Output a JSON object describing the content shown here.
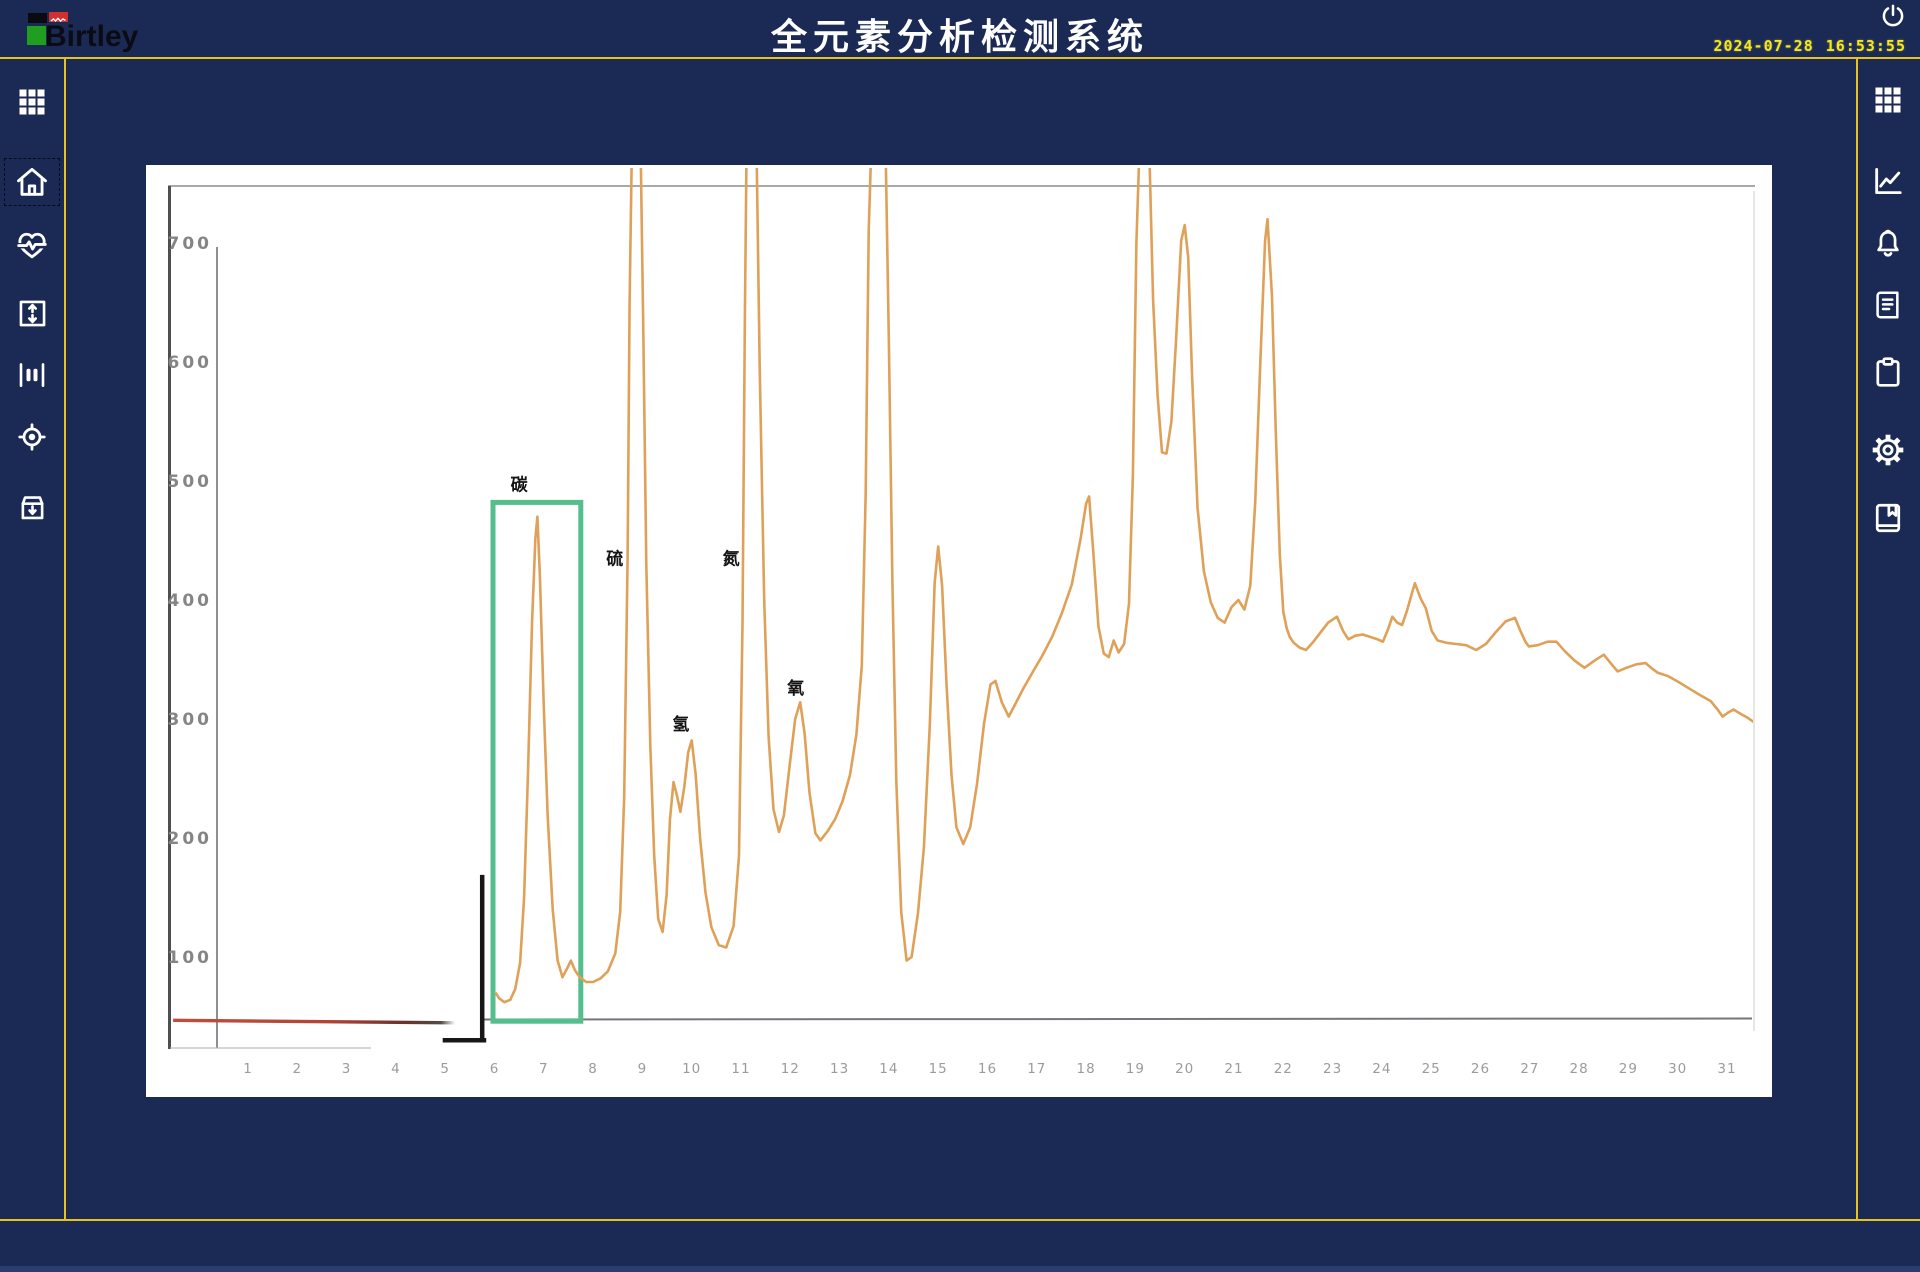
{
  "header": {
    "title": "全元素分析检测系统",
    "brand": "Birtley",
    "date": "2024-07-28",
    "time": "16:53:55",
    "datetime_color": "#f6e81a"
  },
  "colors": {
    "background": "#1b2a55",
    "accent_yellow": "#e8c21e",
    "panel_white": "#ffffff",
    "curve_orange": "#dfa058",
    "highlight_green": "#54bf8c",
    "baseline_red": "#bf4a3a"
  },
  "left_sidebar": {
    "items": [
      {
        "id": "apps",
        "icon": "grid-icon",
        "selected": false
      },
      {
        "id": "home",
        "icon": "home-icon",
        "selected": true
      },
      {
        "id": "monitor",
        "icon": "heartbeat-icon",
        "selected": false
      },
      {
        "id": "range",
        "icon": "vertical-range-icon",
        "selected": false
      },
      {
        "id": "columns",
        "icon": "gap-bars-icon",
        "selected": false
      },
      {
        "id": "locate",
        "icon": "target-icon",
        "selected": false
      },
      {
        "id": "archive",
        "icon": "archive-box-icon",
        "selected": false
      }
    ]
  },
  "right_sidebar": {
    "items": [
      {
        "id": "apps",
        "icon": "grid-icon",
        "selected": false
      },
      {
        "id": "trend",
        "icon": "line-chart-icon",
        "selected": false
      },
      {
        "id": "alarms",
        "icon": "bell-icon",
        "selected": false
      },
      {
        "id": "report",
        "icon": "document-icon",
        "selected": false
      },
      {
        "id": "tasks",
        "icon": "clipboard-icon",
        "selected": false
      },
      {
        "id": "settings",
        "icon": "gear-icon",
        "selected": false
      },
      {
        "id": "records",
        "icon": "book-icon",
        "selected": false
      }
    ]
  },
  "chart_data": {
    "type": "line",
    "title": "",
    "xlabel": "",
    "ylabel": "",
    "grid": false,
    "legend": null,
    "xlim": [
      -0.6,
      31.7
    ],
    "ylim": [
      0,
      765
    ],
    "x_ticks": [
      1,
      2,
      3,
      4,
      5,
      6,
      7,
      8,
      9,
      10,
      11,
      12,
      13,
      14,
      15,
      16,
      17,
      18,
      19,
      20,
      21,
      22,
      23,
      24,
      25,
      26,
      27,
      28,
      29,
      30,
      31
    ],
    "y_ticks": [
      100,
      200,
      300,
      400,
      500,
      600,
      700
    ],
    "annotations": [
      {
        "text": "碳",
        "t": 6.5,
        "v": 497
      },
      {
        "text": "硫",
        "t": 8.44,
        "v": 435
      },
      {
        "text": "氢",
        "t": 9.78,
        "v": 296
      },
      {
        "text": "氮",
        "t": 10.8,
        "v": 435
      },
      {
        "text": "氧",
        "t": 12.11,
        "v": 326
      }
    ],
    "highlight_box": {
      "element": "碳",
      "t1": 5.97,
      "t2": 7.75,
      "v1": 46,
      "v2": 482,
      "color": "#54bf8c"
    },
    "bracket": {
      "t": 5.75,
      "v_top": 169,
      "v_bottom": 30,
      "t_left": 4.95,
      "color": "#171717"
    },
    "red_baseline": {
      "v": 46,
      "t_start": -0.52,
      "t_end": 5.2,
      "color": "#bf4a3a"
    },
    "baseline": {
      "v": 47.5,
      "t_start": 5.73,
      "t_end": 31.55,
      "color": "#5a5e66"
    },
    "series": [
      {
        "name": "element-spectrum",
        "color": "#dfa058",
        "points": [
          [
            6.02,
            70
          ],
          [
            6.1,
            65
          ],
          [
            6.2,
            62
          ],
          [
            6.32,
            64
          ],
          [
            6.42,
            73
          ],
          [
            6.52,
            95
          ],
          [
            6.6,
            150
          ],
          [
            6.68,
            255
          ],
          [
            6.76,
            380
          ],
          [
            6.83,
            452
          ],
          [
            6.87,
            470
          ],
          [
            6.92,
            420
          ],
          [
            7.0,
            310
          ],
          [
            7.08,
            218
          ],
          [
            7.18,
            140
          ],
          [
            7.28,
            97
          ],
          [
            7.38,
            83
          ],
          [
            7.48,
            91
          ],
          [
            7.55,
            97
          ],
          [
            7.63,
            89
          ],
          [
            7.73,
            83
          ],
          [
            7.86,
            79
          ],
          [
            8.0,
            79
          ],
          [
            8.15,
            82
          ],
          [
            8.3,
            88
          ],
          [
            8.45,
            103
          ],
          [
            8.55,
            138
          ],
          [
            8.63,
            235
          ],
          [
            8.7,
            435
          ],
          [
            8.74,
            650
          ],
          [
            8.78,
            765
          ],
          [
            8.97,
            765
          ],
          [
            9.02,
            620
          ],
          [
            9.08,
            430
          ],
          [
            9.16,
            278
          ],
          [
            9.24,
            185
          ],
          [
            9.32,
            132
          ],
          [
            9.41,
            121
          ],
          [
            9.49,
            152
          ],
          [
            9.56,
            216
          ],
          [
            9.63,
            247
          ],
          [
            9.7,
            236
          ],
          [
            9.77,
            222
          ],
          [
            9.85,
            243
          ],
          [
            9.93,
            272
          ],
          [
            10.0,
            282
          ],
          [
            10.08,
            254
          ],
          [
            10.17,
            200
          ],
          [
            10.28,
            154
          ],
          [
            10.4,
            125
          ],
          [
            10.55,
            110
          ],
          [
            10.7,
            108
          ],
          [
            10.85,
            126
          ],
          [
            10.96,
            185
          ],
          [
            11.03,
            380
          ],
          [
            11.08,
            640
          ],
          [
            11.11,
            765
          ],
          [
            11.32,
            765
          ],
          [
            11.38,
            595
          ],
          [
            11.47,
            400
          ],
          [
            11.56,
            285
          ],
          [
            11.66,
            224
          ],
          [
            11.77,
            205
          ],
          [
            11.87,
            219
          ],
          [
            11.99,
            262
          ],
          [
            12.1,
            300
          ],
          [
            12.2,
            314
          ],
          [
            12.29,
            288
          ],
          [
            12.39,
            238
          ],
          [
            12.51,
            204
          ],
          [
            12.61,
            198
          ],
          [
            12.76,
            206
          ],
          [
            12.91,
            216
          ],
          [
            13.06,
            231
          ],
          [
            13.21,
            253
          ],
          [
            13.34,
            287
          ],
          [
            13.45,
            345
          ],
          [
            13.53,
            490
          ],
          [
            13.59,
            710
          ],
          [
            13.63,
            765
          ],
          [
            13.94,
            765
          ],
          [
            14.0,
            615
          ],
          [
            14.07,
            415
          ],
          [
            14.15,
            248
          ],
          [
            14.25,
            138
          ],
          [
            14.36,
            97
          ],
          [
            14.46,
            100
          ],
          [
            14.59,
            137
          ],
          [
            14.71,
            192
          ],
          [
            14.83,
            295
          ],
          [
            14.93,
            415
          ],
          [
            15.0,
            445
          ],
          [
            15.08,
            412
          ],
          [
            15.17,
            328
          ],
          [
            15.27,
            253
          ],
          [
            15.37,
            209
          ],
          [
            15.51,
            195
          ],
          [
            15.65,
            209
          ],
          [
            15.79,
            246
          ],
          [
            15.93,
            296
          ],
          [
            16.06,
            329
          ],
          [
            16.16,
            332
          ],
          [
            16.29,
            314
          ],
          [
            16.43,
            302
          ],
          [
            16.57,
            313
          ],
          [
            16.73,
            326
          ],
          [
            16.91,
            339
          ],
          [
            17.11,
            353
          ],
          [
            17.31,
            369
          ],
          [
            17.51,
            389
          ],
          [
            17.71,
            413
          ],
          [
            17.89,
            452
          ],
          [
            18.0,
            481
          ],
          [
            18.06,
            487
          ],
          [
            18.15,
            438
          ],
          [
            18.25,
            378
          ],
          [
            18.36,
            355
          ],
          [
            18.46,
            352
          ],
          [
            18.56,
            366
          ],
          [
            18.66,
            356
          ],
          [
            18.77,
            363
          ],
          [
            18.87,
            397
          ],
          [
            18.95,
            505
          ],
          [
            19.02,
            700
          ],
          [
            19.07,
            765
          ],
          [
            19.29,
            765
          ],
          [
            19.36,
            652
          ],
          [
            19.45,
            572
          ],
          [
            19.54,
            524
          ],
          [
            19.63,
            523
          ],
          [
            19.73,
            550
          ],
          [
            19.83,
            622
          ],
          [
            19.93,
            702
          ],
          [
            20.0,
            715
          ],
          [
            20.07,
            688
          ],
          [
            20.15,
            588
          ],
          [
            20.26,
            478
          ],
          [
            20.39,
            424
          ],
          [
            20.53,
            398
          ],
          [
            20.67,
            385
          ],
          [
            20.81,
            381
          ],
          [
            20.95,
            394
          ],
          [
            21.09,
            400
          ],
          [
            21.21,
            392
          ],
          [
            21.33,
            412
          ],
          [
            21.43,
            482
          ],
          [
            21.53,
            595
          ],
          [
            21.63,
            702
          ],
          [
            21.68,
            720
          ],
          [
            21.77,
            655
          ],
          [
            21.85,
            538
          ],
          [
            21.93,
            438
          ],
          [
            22.0,
            390
          ],
          [
            22.07,
            376
          ],
          [
            22.13,
            369
          ],
          [
            22.21,
            364
          ],
          [
            22.33,
            360
          ],
          [
            22.46,
            358
          ],
          [
            22.61,
            365
          ],
          [
            22.76,
            373
          ],
          [
            22.91,
            381
          ],
          [
            23.09,
            386
          ],
          [
            23.21,
            374
          ],
          [
            23.32,
            367
          ],
          [
            23.46,
            370
          ],
          [
            23.61,
            371
          ],
          [
            23.76,
            369
          ],
          [
            23.91,
            367
          ],
          [
            24.02,
            365
          ],
          [
            24.13,
            376
          ],
          [
            24.21,
            386
          ],
          [
            24.31,
            381
          ],
          [
            24.41,
            379
          ],
          [
            24.51,
            391
          ],
          [
            24.61,
            406
          ],
          [
            24.67,
            414
          ],
          [
            24.79,
            401
          ],
          [
            24.89,
            393
          ],
          [
            25.01,
            374
          ],
          [
            25.13,
            366
          ],
          [
            25.31,
            364
          ],
          [
            25.51,
            363
          ],
          [
            25.71,
            362
          ],
          [
            25.91,
            358
          ],
          [
            26.11,
            363
          ],
          [
            26.31,
            373
          ],
          [
            26.51,
            382
          ],
          [
            26.7,
            385
          ],
          [
            26.81,
            374
          ],
          [
            26.91,
            365
          ],
          [
            26.98,
            361
          ],
          [
            27.16,
            362
          ],
          [
            27.36,
            365
          ],
          [
            27.54,
            365
          ],
          [
            27.71,
            357
          ],
          [
            27.91,
            349
          ],
          [
            28.11,
            343
          ],
          [
            28.31,
            349
          ],
          [
            28.5,
            354
          ],
          [
            28.66,
            346
          ],
          [
            28.78,
            340
          ],
          [
            28.96,
            343
          ],
          [
            29.16,
            346
          ],
          [
            29.35,
            347
          ],
          [
            29.46,
            343
          ],
          [
            29.59,
            339
          ],
          [
            29.81,
            336
          ],
          [
            30.06,
            330
          ],
          [
            30.26,
            325
          ],
          [
            30.46,
            320
          ],
          [
            30.67,
            315
          ],
          [
            30.81,
            308
          ],
          [
            30.91,
            302
          ],
          [
            31.01,
            305
          ],
          [
            31.13,
            308
          ],
          [
            31.29,
            304
          ],
          [
            31.42,
            301
          ],
          [
            31.56,
            297
          ],
          [
            31.62,
            295
          ]
        ]
      }
    ]
  }
}
